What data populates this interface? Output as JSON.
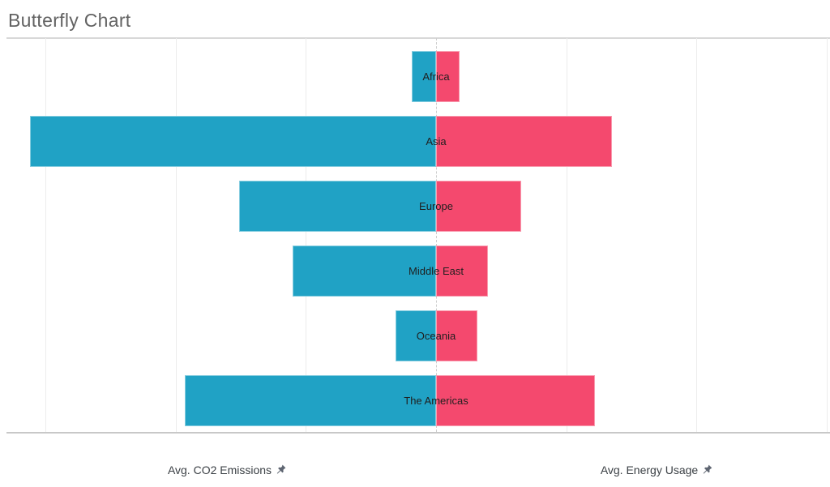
{
  "title": "Butterfly Chart",
  "axis_titles": {
    "left": "Avg. CO2 Emissions",
    "right": "Avg. Energy Usage"
  },
  "icons": {
    "left_axis_pin": "pushpin",
    "right_axis_pin": "pushpin"
  },
  "colors": {
    "left_bar": "#20A2C5",
    "right_bar": "#F4496E",
    "gridline": "#ececec",
    "center_reference_line": "#cfcfcf",
    "title_text": "#636363",
    "axis_title_text": "#3b4045",
    "category_label_text": "#1f1f1f",
    "divider_line": "#d8d8d8",
    "axis_bottom_line": "#c8c8c8"
  },
  "chart_data": {
    "type": "bar",
    "variant": "butterfly",
    "orientation": "horizontal-diverging",
    "title": "Butterfly Chart",
    "categories": [
      "Africa",
      "Asia",
      "Europe",
      "Middle East",
      "Oceania",
      "The Americas"
    ],
    "series": [
      {
        "name": "Avg. CO2 Emissions",
        "side": "left",
        "color": "#20A2C5",
        "values": [
          0.19,
          3.12,
          1.51,
          1.1,
          0.31,
          1.93
        ]
      },
      {
        "name": "Avg. Energy Usage",
        "side": "right",
        "color": "#F4496E",
        "values": [
          0.18,
          1.35,
          0.65,
          0.4,
          0.32,
          1.22
        ]
      }
    ],
    "value_axis": {
      "tick_labels_visible": false,
      "units": "estimated (one gridline interval = 1)",
      "gridline_interval": 1,
      "left_axis_range": [
        3.35,
        0
      ],
      "right_axis_range": [
        0,
        3.02
      ]
    },
    "category_labels_position": "centered-on-axis",
    "grid": true,
    "center_reference_line": "dashed",
    "legend": "none"
  }
}
